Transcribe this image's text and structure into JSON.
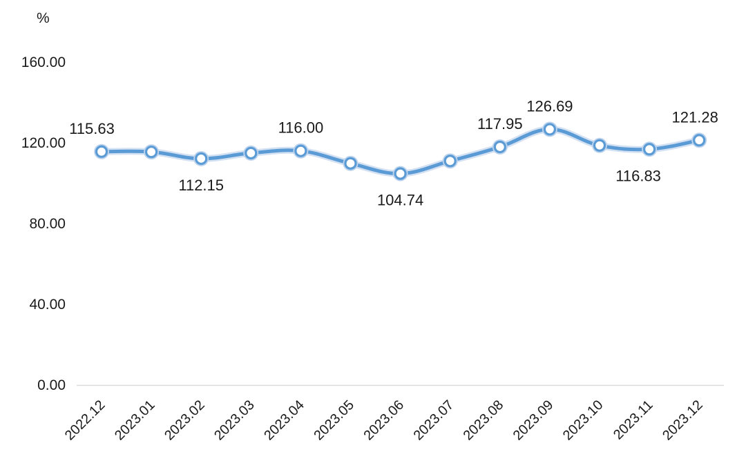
{
  "chart_data": {
    "type": "line",
    "unit_label": "%",
    "categories": [
      "2022.12",
      "2023.01",
      "2023.02",
      "2023.03",
      "2023.04",
      "2023.05",
      "2023.06",
      "2023.07",
      "2023.08",
      "2023.09",
      "2023.10",
      "2023.11",
      "2023.12"
    ],
    "series": [
      {
        "values": [
          115.63,
          115.5,
          112.15,
          114.9,
          116.0,
          109.8,
          104.74,
          111.0,
          117.95,
          126.69,
          118.7,
          116.83,
          121.28
        ],
        "labeled": [
          true,
          false,
          true,
          false,
          true,
          false,
          true,
          false,
          true,
          true,
          false,
          true,
          true
        ],
        "color": "#5b9bd5"
      }
    ],
    "y_ticks": [
      "0.00",
      "40.00",
      "80.00",
      "120.00",
      "160.00"
    ],
    "ylim": [
      0,
      160
    ],
    "grid": false,
    "legend": "none"
  }
}
